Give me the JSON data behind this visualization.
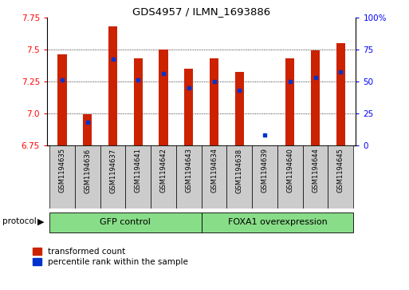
{
  "title": "GDS4957 / ILMN_1693886",
  "samples": [
    "GSM1194635",
    "GSM1194636",
    "GSM1194637",
    "GSM1194641",
    "GSM1194642",
    "GSM1194643",
    "GSM1194634",
    "GSM1194638",
    "GSM1194639",
    "GSM1194640",
    "GSM1194644",
    "GSM1194645"
  ],
  "red_values": [
    7.46,
    6.99,
    7.68,
    7.43,
    7.5,
    7.35,
    7.43,
    7.32,
    6.75,
    7.43,
    7.49,
    7.55
  ],
  "blue_values": [
    7.26,
    6.93,
    7.42,
    7.26,
    7.31,
    7.2,
    7.25,
    7.18,
    6.83,
    7.25,
    7.28,
    7.32
  ],
  "ymin": 6.75,
  "ymax": 7.75,
  "yticks": [
    6.75,
    7.0,
    7.25,
    7.5,
    7.75
  ],
  "right_yticks": [
    0,
    25,
    50,
    75,
    100
  ],
  "bar_color": "#cc2200",
  "marker_color": "#0033cc",
  "bar_width": 0.35,
  "group1_label": "GFP control",
  "group2_label": "FOXA1 overexpression",
  "group1_indices": [
    0,
    1,
    2,
    3,
    4,
    5
  ],
  "group2_indices": [
    6,
    7,
    8,
    9,
    10,
    11
  ],
  "legend_red": "transformed count",
  "legend_blue": "percentile rank within the sample",
  "protocol_label": "protocol",
  "group_box_color": "#88dd88",
  "tick_label_bg": "#cccccc"
}
